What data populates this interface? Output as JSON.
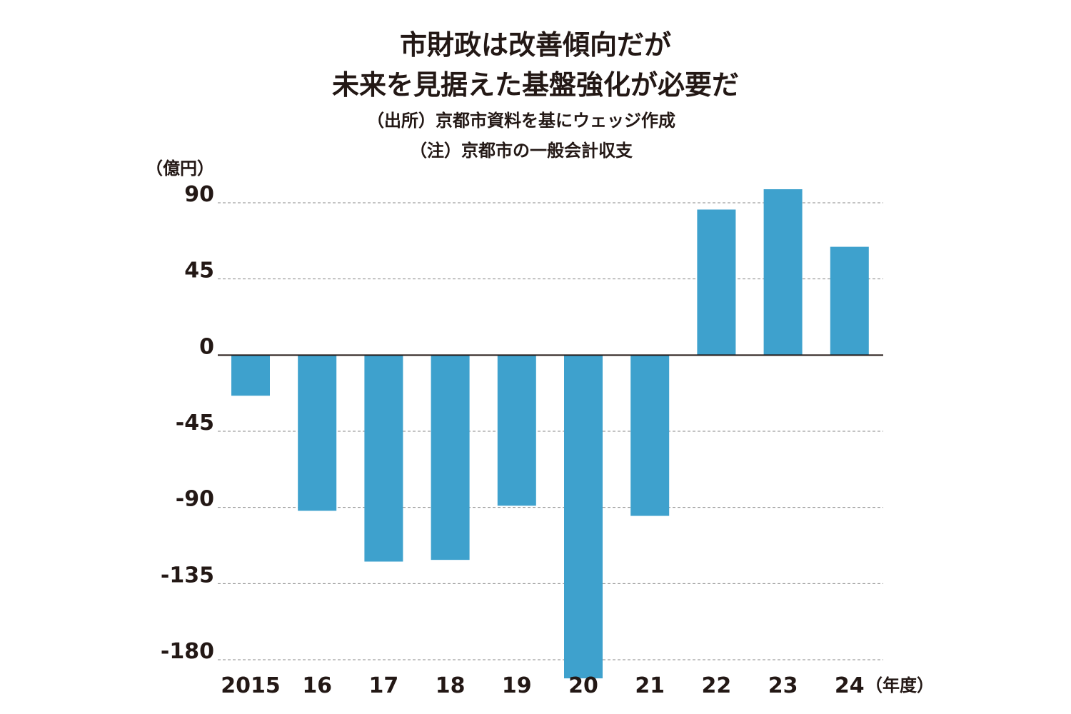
{
  "chart_data": {
    "type": "bar",
    "title": "市財政は改善傾向だが",
    "subtitle": "未来を見据えた基盤強化が必要だ",
    "source": "（出所）京都市資料を基にウェッジ作成",
    "note": "（注）京都市の一般会計収支",
    "ylabel": "（億円）",
    "xlabel": "（年度）",
    "categories": [
      "2015",
      "16",
      "17",
      "18",
      "19",
      "20",
      "21",
      "22",
      "23",
      "24"
    ],
    "values": [
      -24,
      -92,
      -122,
      -121,
      -89,
      -191,
      -95,
      86,
      98,
      64
    ],
    "ylim": [
      -180,
      90
    ],
    "yticks": [
      "90",
      "45",
      "0",
      "-45",
      "-90",
      "-135",
      "-180"
    ],
    "grid": true,
    "bar_color": "#3ea1cd"
  }
}
